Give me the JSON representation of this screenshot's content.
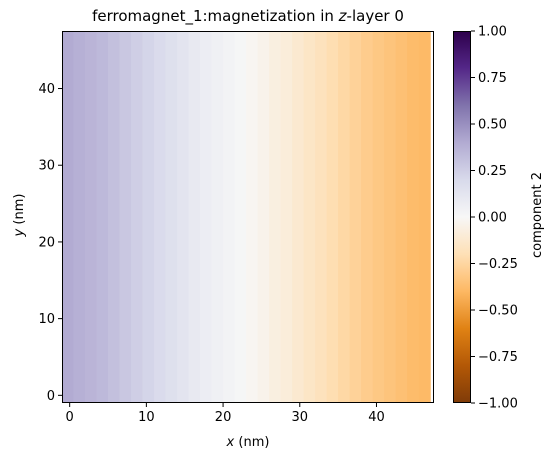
{
  "chart_data": {
    "type": "heatmap",
    "title": {
      "prefix": "ferromagnet_1:magnetization in ",
      "italic": "z",
      "suffix": "-layer 0"
    },
    "xlabel": {
      "italic": "x",
      "suffix": " (nm)"
    },
    "ylabel": {
      "italic": "y",
      "suffix": " (nm)"
    },
    "xlim": [
      -1,
      47.5
    ],
    "ylim": [
      -1,
      47.5
    ],
    "x_ticks": [
      0,
      10,
      20,
      30,
      40
    ],
    "y_ticks": [
      0,
      10,
      20,
      30,
      40
    ],
    "x_tick_labels": [
      "0",
      "10",
      "20",
      "30",
      "40"
    ],
    "y_tick_labels": [
      "0",
      "10",
      "20",
      "30",
      "40"
    ],
    "cell_size_nm": 1.5,
    "column_x_centers": [
      -0.25,
      1.25,
      2.75,
      4.25,
      5.75,
      7.25,
      8.75,
      10.25,
      11.75,
      13.25,
      14.75,
      16.25,
      17.75,
      19.25,
      20.75,
      22.25,
      23.75,
      25.25,
      26.75,
      28.25,
      29.75,
      31.25,
      32.75,
      34.25,
      35.75,
      37.25,
      38.75,
      40.25,
      41.75,
      43.25,
      44.75,
      46.25
    ],
    "column_values": [
      0.4,
      0.38,
      0.36,
      0.34,
      0.31,
      0.28,
      0.25,
      0.22,
      0.19,
      0.16,
      0.13,
      0.1,
      0.07,
      0.05,
      0.03,
      0.01,
      -0.02,
      -0.04,
      -0.07,
      -0.09,
      -0.12,
      -0.15,
      -0.18,
      -0.21,
      -0.24,
      -0.27,
      -0.3,
      -0.32,
      -0.34,
      -0.36,
      -0.38,
      -0.39
    ],
    "colorbar": {
      "colormap": "PuOr",
      "range": [
        -1.0,
        1.0
      ],
      "label": "component 2",
      "ticks": [
        1.0,
        0.75,
        0.5,
        0.25,
        0.0,
        -0.25,
        -0.5,
        -0.75,
        -1.0
      ],
      "tick_labels": [
        "1.00",
        "0.75",
        "0.50",
        "0.25",
        "0.00",
        "−0.25",
        "−0.50",
        "−0.75",
        "−1.00"
      ],
      "stops": [
        {
          "value": -1.0,
          "color": "#7f3b08"
        },
        {
          "value": -0.8,
          "color": "#b35806"
        },
        {
          "value": -0.6,
          "color": "#e08214"
        },
        {
          "value": -0.4,
          "color": "#fdb863"
        },
        {
          "value": -0.2,
          "color": "#fee0b6"
        },
        {
          "value": 0.0,
          "color": "#f7f7f7"
        },
        {
          "value": 0.2,
          "color": "#d8daeb"
        },
        {
          "value": 0.4,
          "color": "#b2abd2"
        },
        {
          "value": 0.6,
          "color": "#8073ac"
        },
        {
          "value": 0.8,
          "color": "#542788"
        },
        {
          "value": 1.0,
          "color": "#2d004b"
        }
      ]
    }
  }
}
